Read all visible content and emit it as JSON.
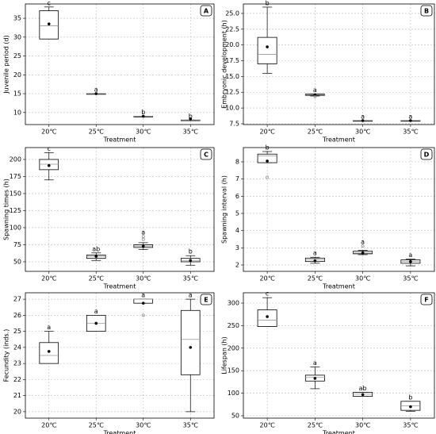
{
  "chart_data": [
    {
      "type": "box",
      "panel_label": "A",
      "ylabel": "Juvenile period (d)",
      "xlabel": "Treatment",
      "categories": [
        "20℃",
        "25℃",
        "30℃",
        "35℃"
      ],
      "boxes": [
        {
          "whislo": 29.5,
          "q1": 29.5,
          "med": 33,
          "q3": 37,
          "whishi": 38,
          "mean": 33.5
        },
        {
          "whislo": 15,
          "q1": 15,
          "med": 15,
          "q3": 15,
          "whishi": 15,
          "mean": 15
        },
        {
          "whislo": 9,
          "q1": 9,
          "med": 9,
          "q3": 9,
          "whishi": 9,
          "mean": 9
        },
        {
          "whislo": 8,
          "q1": 8,
          "med": 8,
          "q3": 8,
          "whishi": 8,
          "mean": 8.3
        }
      ],
      "letters": [
        "c",
        "a",
        "b",
        "b"
      ],
      "ylim": [
        6.8,
        38.8
      ],
      "yticks": [
        10,
        15,
        20,
        25,
        30,
        35
      ],
      "grid": true,
      "box_color": "#ffffff",
      "median_color": "#999999",
      "mean_color": "#000000",
      "flier_color": "#888888"
    },
    {
      "type": "box",
      "panel_label": "B",
      "ylabel": "Embryonic development (h)",
      "xlabel": "Treatment",
      "categories": [
        "20℃",
        "25℃",
        "30℃",
        "35℃"
      ],
      "boxes": [
        {
          "whislo": 15.5,
          "q1": 17,
          "med": 18.5,
          "q3": 21.2,
          "whishi": 26,
          "mean": 19.7
        },
        {
          "whislo": 11.9,
          "q1": 12,
          "med": 12.1,
          "q3": 12.2,
          "whishi": 12.2,
          "mean": 12.1,
          "fliers": [
            11.8
          ]
        },
        {
          "whislo": 8,
          "q1": 8,
          "med": 8,
          "q3": 8,
          "whishi": 8,
          "mean": 8
        },
        {
          "whislo": 8,
          "q1": 8,
          "med": 8,
          "q3": 8,
          "whishi": 8,
          "mean": 8
        }
      ],
      "letters": [
        "b",
        "a",
        "a",
        "a"
      ],
      "ylim": [
        7.37,
        26.5
      ],
      "yticks": [
        7.5,
        {
          "value": 10,
          "label": "10.0"
        },
        12.5,
        {
          "value": 15,
          "label": "15.0"
        },
        17.5,
        {
          "value": 20,
          "label": "20.0"
        },
        22.5,
        {
          "value": 25,
          "label": "25.0"
        }
      ],
      "grid": true,
      "box_color": "#ffffff",
      "median_color": "#999999",
      "mean_color": "#000000",
      "flier_color": "#888888"
    },
    {
      "type": "box",
      "panel_label": "C",
      "ylabel": "Spawning times (h)",
      "xlabel": "Treatment",
      "categories": [
        "20℃",
        "25℃",
        "30℃",
        "35℃"
      ],
      "boxes": [
        {
          "whislo": 170,
          "q1": 185,
          "med": 193,
          "q3": 200,
          "whishi": 210,
          "mean": 191
        },
        {
          "whislo": 52,
          "q1": 55,
          "med": 58,
          "q3": 60,
          "whishi": 63,
          "mean": 58
        },
        {
          "whislo": 68,
          "q1": 71,
          "med": 73,
          "q3": 75,
          "whishi": 78,
          "mean": 73,
          "fliers": [
            83,
            87
          ]
        },
        {
          "whislo": 45,
          "q1": 50,
          "med": 52,
          "q3": 55,
          "whishi": 59,
          "mean": 52
        }
      ],
      "letters": [
        "c",
        "ab",
        "a",
        "b"
      ],
      "ylim": [
        36,
        217.4
      ],
      "yticks": [
        50,
        75,
        100,
        125,
        150,
        175,
        200
      ],
      "grid": true,
      "box_color": "#ffffff",
      "median_color": "#999999",
      "mean_color": "#000000",
      "flier_color": "#888888"
    },
    {
      "type": "box",
      "panel_label": "D",
      "ylabel": "Spawning interval (h)",
      "xlabel": "Treatment",
      "categories": [
        "20℃",
        "25℃",
        "30℃",
        "35℃"
      ],
      "boxes": [
        {
          "whislo": 7.95,
          "q1": 7.95,
          "med": 8.35,
          "q3": 8.45,
          "whishi": 8.6,
          "mean": 8.05,
          "fliers": [
            7.1
          ]
        },
        {
          "whislo": 2.1,
          "q1": 2.2,
          "med": 2.3,
          "q3": 2.4,
          "whishi": 2.45,
          "mean": 2.25
        },
        {
          "whislo": 2.6,
          "q1": 2.65,
          "med": 2.7,
          "q3": 2.8,
          "whishi": 2.85,
          "mean": 2.7,
          "fliers": [
            3.1
          ]
        },
        {
          "whislo": 1.95,
          "q1": 2.1,
          "med": 2.2,
          "q3": 2.3,
          "whishi": 2.35,
          "mean": 2.2
        }
      ],
      "letters": [
        "b",
        "a",
        "a",
        "a"
      ],
      "ylim": [
        1.63,
        8.83
      ],
      "yticks": [
        2,
        3,
        4,
        5,
        6,
        7,
        8
      ],
      "grid": true,
      "box_color": "#ffffff",
      "median_color": "#999999",
      "mean_color": "#000000",
      "flier_color": "#888888"
    },
    {
      "type": "box",
      "panel_label": "E",
      "ylabel": "Fecundity (inds.)",
      "xlabel": "Treatment",
      "categories": [
        "20℃",
        "25℃",
        "30℃",
        "35℃"
      ],
      "boxes": [
        {
          "whislo": 23,
          "q1": 23,
          "med": 23.5,
          "q3": 24.3,
          "whishi": 25,
          "mean": 23.75
        },
        {
          "whislo": 25,
          "q1": 25,
          "med": 25.5,
          "q3": 26,
          "whishi": 26,
          "mean": 25.5
        },
        {
          "whislo": 26.75,
          "q1": 26.75,
          "med": 27,
          "q3": 27,
          "whishi": 27,
          "mean": 26.75,
          "fliers": [
            26
          ]
        },
        {
          "whislo": 20,
          "q1": 22.3,
          "med": 24.5,
          "q3": 26.3,
          "whishi": 27,
          "mean": 24
        }
      ],
      "letters": [
        "a",
        "a",
        "a",
        "a"
      ],
      "ylim": [
        19.6,
        27.4
      ],
      "yticks": [
        20,
        21,
        22,
        23,
        24,
        25,
        26,
        27
      ],
      "grid": true,
      "box_color": "#ffffff",
      "median_color": "#999999",
      "mean_color": "#000000",
      "flier_color": "#888888"
    },
    {
      "type": "box",
      "panel_label": "F",
      "ylabel": "Lifespan (h)",
      "xlabel": "Treatment",
      "categories": [
        "20℃",
        "25℃",
        "30℃",
        "35℃"
      ],
      "boxes": [
        {
          "whislo": 248,
          "q1": 248,
          "med": 262,
          "q3": 285,
          "whishi": 312,
          "mean": 270
        },
        {
          "whislo": 110,
          "q1": 127,
          "med": 135,
          "q3": 140,
          "whishi": 158,
          "mean": 133
        },
        {
          "whislo": 93,
          "q1": 93,
          "med": 98,
          "q3": 102,
          "whishi": 102,
          "mean": 97
        },
        {
          "whislo": 60,
          "q1": 62,
          "med": 72,
          "q3": 82,
          "whishi": 82,
          "mean": 70
        }
      ],
      "letters": [
        "c",
        "a",
        "ab",
        "b"
      ],
      "ylim": [
        44.7,
        322.9
      ],
      "yticks": [
        50,
        100,
        150,
        200,
        250,
        300
      ],
      "grid": true,
      "box_color": "#ffffff",
      "median_color": "#999999",
      "mean_color": "#000000",
      "flier_color": "#888888"
    }
  ]
}
